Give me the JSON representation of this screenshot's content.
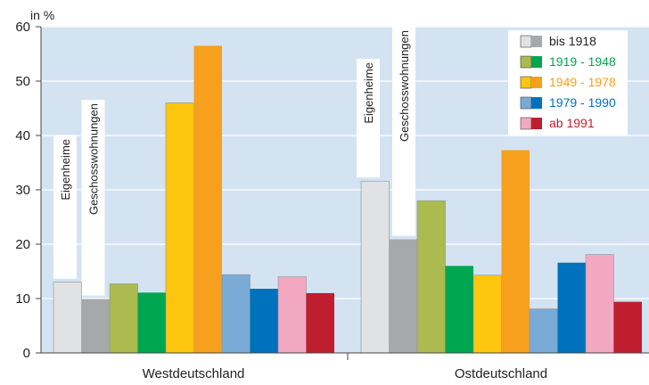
{
  "chart_data": {
    "type": "bar",
    "ylabel": "in %",
    "ylim": [
      0,
      60
    ],
    "yticks": [
      0,
      10,
      20,
      30,
      40,
      50,
      60
    ],
    "grid": true,
    "legend_position": "top-right",
    "background_color": "#d4e3f2",
    "groups": [
      "Westdeutschland",
      "Ostdeutschland"
    ],
    "bar_type_labels": [
      "Eigenheime",
      "Geschosswohnungen"
    ],
    "series": [
      {
        "name": "bis 1918",
        "color_a": "#e0e2e3",
        "color_b": "#a6a8ab",
        "label_color": "#222222",
        "values": [
          [
            13.0,
            9.9
          ],
          [
            31.6,
            20.9
          ]
        ]
      },
      {
        "name": "1919 - 1948",
        "color_a": "#abbb4f",
        "color_b": "#00a650",
        "label_color": "#00a650",
        "values": [
          [
            12.7,
            11.1
          ],
          [
            28.0,
            16.0
          ]
        ]
      },
      {
        "name": "1949 - 1978",
        "color_a": "#ffc60f",
        "color_b": "#f6a01e",
        "label_color": "#f6a01e",
        "values": [
          [
            46.0,
            56.5
          ],
          [
            14.3,
            37.3
          ]
        ]
      },
      {
        "name": "1979 - 1990",
        "color_a": "#7aabd6",
        "color_b": "#0071bc",
        "label_color": "#0071bc",
        "values": [
          [
            14.4,
            11.8
          ],
          [
            8.1,
            16.6
          ]
        ]
      },
      {
        "name": "ab 1991",
        "color_a": "#f3a8c2",
        "color_b": "#be1e2d",
        "label_color": "#be1e2d",
        "values": [
          [
            14.0,
            11.0
          ],
          [
            18.1,
            9.4
          ]
        ]
      }
    ]
  }
}
